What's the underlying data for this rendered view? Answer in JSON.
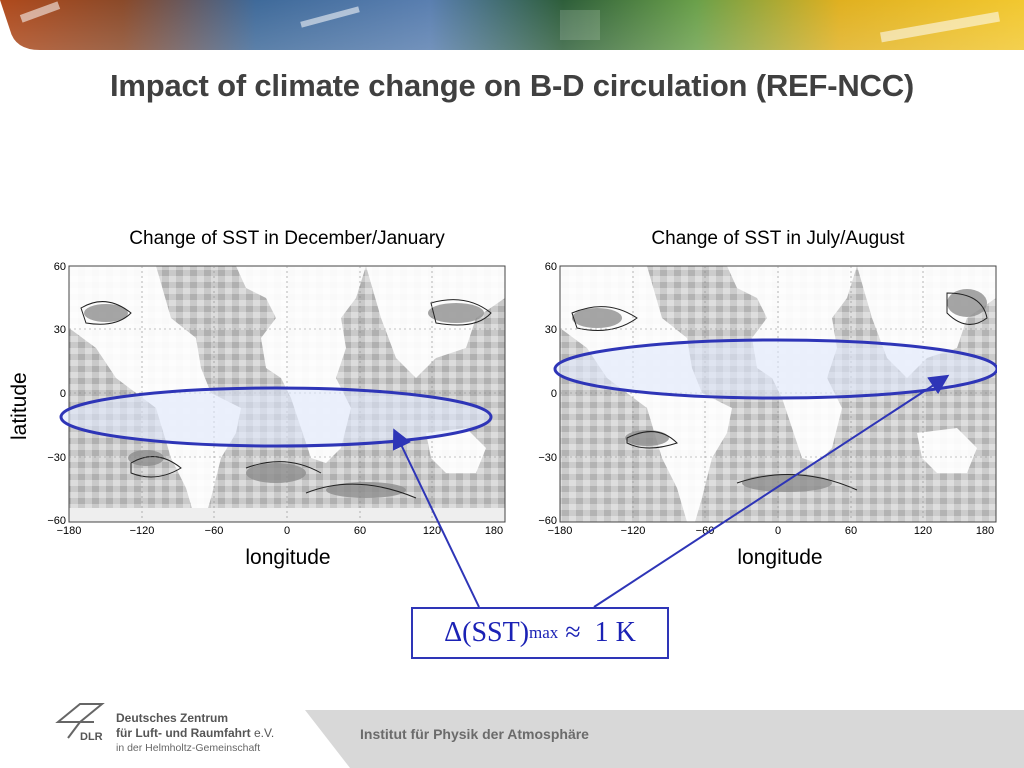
{
  "slide": {
    "title": "Impact of climate change on B-D circulation (REF-NCC)"
  },
  "maps": [
    {
      "title": "Change of SST in December/January",
      "x_ticks": [
        "−180",
        "−120",
        "−60",
        "0",
        "60",
        "120",
        "180"
      ],
      "y_ticks": [
        "60",
        "30",
        "0",
        "−30",
        "−60"
      ],
      "xlabel": "longitude"
    },
    {
      "title": "Change of SST in July/August",
      "x_ticks": [
        "−180",
        "−120",
        "−60",
        "0",
        "60",
        "120",
        "180"
      ],
      "y_ticks": [
        "60",
        "30",
        "0",
        "−30",
        "−60"
      ],
      "xlabel": "longitude"
    }
  ],
  "ylabel": "latitude",
  "callout": {
    "prefix": "Δ(SST)",
    "subscript": "max",
    "suffix": " ≈  1 K"
  },
  "footer": {
    "org_line1": "Deutsches Zentrum",
    "org_line2": "für Luft- und Raumfahrt",
    "org_line2_suffix": " e.V.",
    "org_line3": "in der Helmholtz-Gemeinschaft",
    "logo_text": "DLR",
    "institute": "Institut für Physik der Atmosphäre"
  },
  "colors": {
    "title": "#404040",
    "annotation": "#2e35b7",
    "ellipse_fill": "#dde6fb"
  }
}
